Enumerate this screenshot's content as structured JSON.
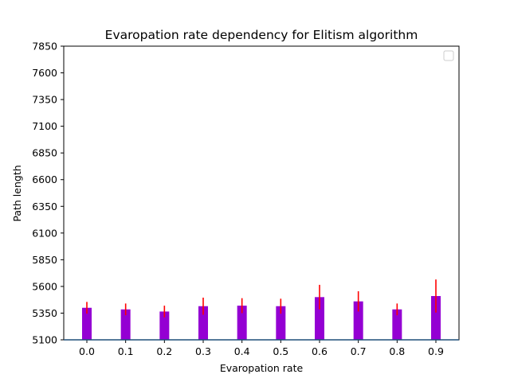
{
  "colors": {
    "bar": "#9400d3",
    "error": "#ff0000",
    "baseline": "#1f4e79",
    "axis": "#000000"
  },
  "chart_data": {
    "type": "bar",
    "title": "Evaropation rate dependency for Elitism algorithm",
    "xlabel": "Evaropation rate",
    "ylabel": "Path length",
    "categories": [
      "0.0",
      "0.1",
      "0.2",
      "0.3",
      "0.4",
      "0.5",
      "0.6",
      "0.7",
      "0.8",
      "0.9"
    ],
    "values": [
      5400,
      5385,
      5365,
      5415,
      5420,
      5415,
      5500,
      5460,
      5385,
      5510
    ],
    "errors": [
      55,
      55,
      55,
      80,
      70,
      70,
      115,
      95,
      55,
      155
    ],
    "ylim": [
      5100,
      7850
    ],
    "yticks": [
      "5100",
      "5350",
      "5600",
      "5850",
      "6100",
      "6350",
      "6600",
      "6850",
      "7100",
      "7350",
      "7600",
      "7850"
    ],
    "baseline": 5100,
    "grid": false,
    "legend": {
      "placement": "upper-right",
      "entries": []
    }
  }
}
